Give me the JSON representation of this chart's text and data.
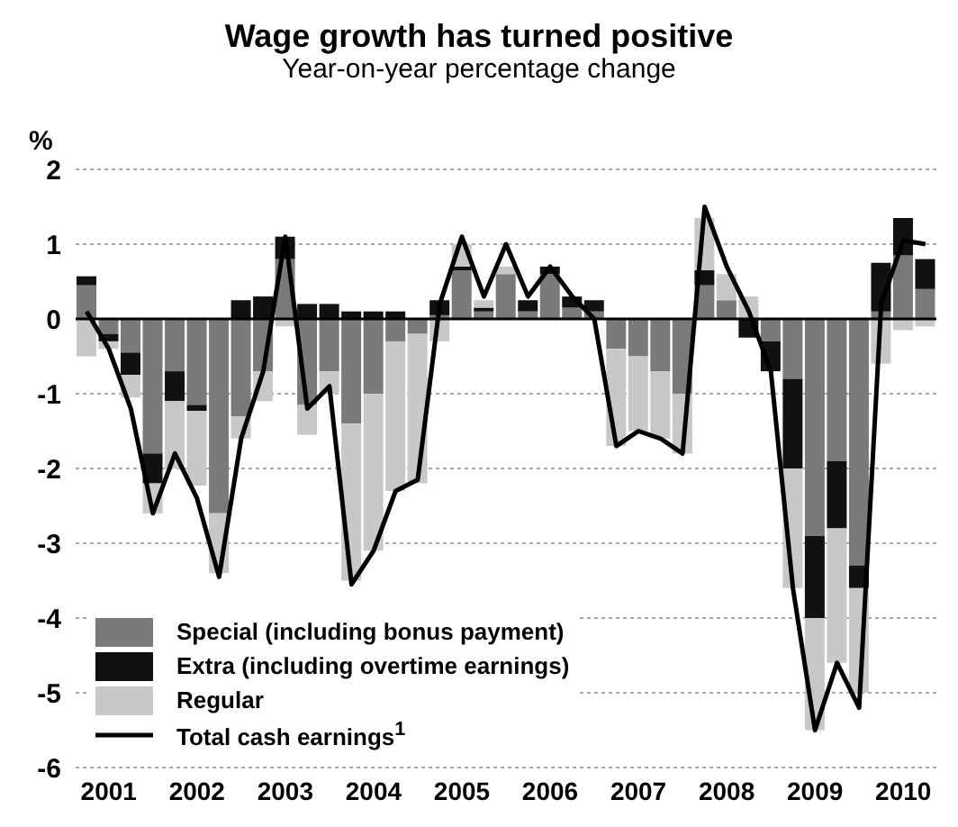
{
  "chart_data": {
    "type": "bar",
    "title": "Wage growth has turned positive",
    "subtitle": "Year-on-year percentage change",
    "ylabel": "%",
    "categories": [
      null,
      "2001",
      null,
      null,
      null,
      "2002",
      null,
      null,
      null,
      "2003",
      null,
      null,
      null,
      "2004",
      null,
      null,
      null,
      "2005",
      null,
      null,
      null,
      "2006",
      null,
      null,
      null,
      "2007",
      null,
      null,
      null,
      "2008",
      null,
      null,
      null,
      "2009",
      null,
      null,
      null,
      "2010",
      null
    ],
    "stacked": true,
    "series": [
      {
        "name": "Special (including bonus payment)",
        "type": "bar",
        "color": "#7a7a7a",
        "values": [
          0.45,
          -0.2,
          -0.45,
          -1.8,
          -0.7,
          -1.15,
          -2.6,
          -1.3,
          -0.7,
          0.8,
          -1.15,
          -0.7,
          -1.4,
          -1.0,
          -0.3,
          -0.2,
          0.05,
          0.65,
          0.1,
          0.6,
          0.1,
          0.6,
          0.15,
          0.1,
          -0.4,
          -0.5,
          -0.7,
          -1.0,
          0.45,
          0.25,
          null,
          -0.3,
          -0.8,
          -2.9,
          -1.9,
          -3.3,
          0.1,
          0.85,
          0.4
        ]
      },
      {
        "name": "Extra (including overtime earnings)",
        "type": "bar",
        "color": "#111111",
        "values": [
          0.12,
          -0.1,
          -0.3,
          -0.4,
          -0.4,
          -0.08,
          0,
          0.25,
          0.3,
          0.3,
          0.2,
          0.2,
          0.1,
          0.1,
          0.1,
          0,
          0.2,
          0.05,
          0.05,
          0,
          0.15,
          0.1,
          0.15,
          0.15,
          0,
          0,
          0,
          0,
          0.2,
          0,
          -0.25,
          -0.4,
          -1.2,
          -1.1,
          -0.9,
          -0.3,
          0.65,
          0.5,
          0.4
        ]
      },
      {
        "name": "Regular",
        "type": "bar",
        "color": "#c8c8c8",
        "values": [
          -0.5,
          -0.1,
          -0.3,
          -0.4,
          -0.9,
          -1.0,
          -0.8,
          -0.3,
          -0.4,
          -0.1,
          -0.4,
          -0.3,
          -2.1,
          -2.1,
          -2.0,
          -2.0,
          -0.3,
          0.3,
          0.1,
          0.1,
          0,
          0,
          0,
          0,
          -1.3,
          -1.0,
          -0.9,
          -0.8,
          0.7,
          0.35,
          0.3,
          0,
          -1.6,
          -1.5,
          -1.8,
          -1.4,
          -0.6,
          -0.15,
          -0.1
        ]
      },
      {
        "name": "Total cash earnings$^{1}$",
        "type": "line",
        "color": "#000000",
        "values": [
          0.1,
          -0.4,
          -1.2,
          -2.6,
          -1.8,
          -2.4,
          -3.45,
          -1.6,
          -0.7,
          1.1,
          -1.2,
          -0.9,
          -3.55,
          -3.1,
          -2.3,
          -2.15,
          0.2,
          1.1,
          0.3,
          1.0,
          0.3,
          0.7,
          0.3,
          0,
          -1.7,
          -1.5,
          -1.6,
          -1.8,
          1.5,
          0.7,
          0.1,
          -0.7,
          -3.6,
          -5.5,
          -4.6,
          -5.2,
          0.2,
          1.05,
          1.0
        ]
      }
    ],
    "ylim": [
      -6,
      2
    ],
    "yticks": [
      -6,
      -5,
      -4,
      -3,
      -2,
      -1,
      0,
      1,
      2
    ],
    "grid": "y",
    "legend": "bottom left",
    "ref_lines": [
      {
        "axis": "y",
        "value": 0,
        "color": "#000000"
      }
    ]
  }
}
